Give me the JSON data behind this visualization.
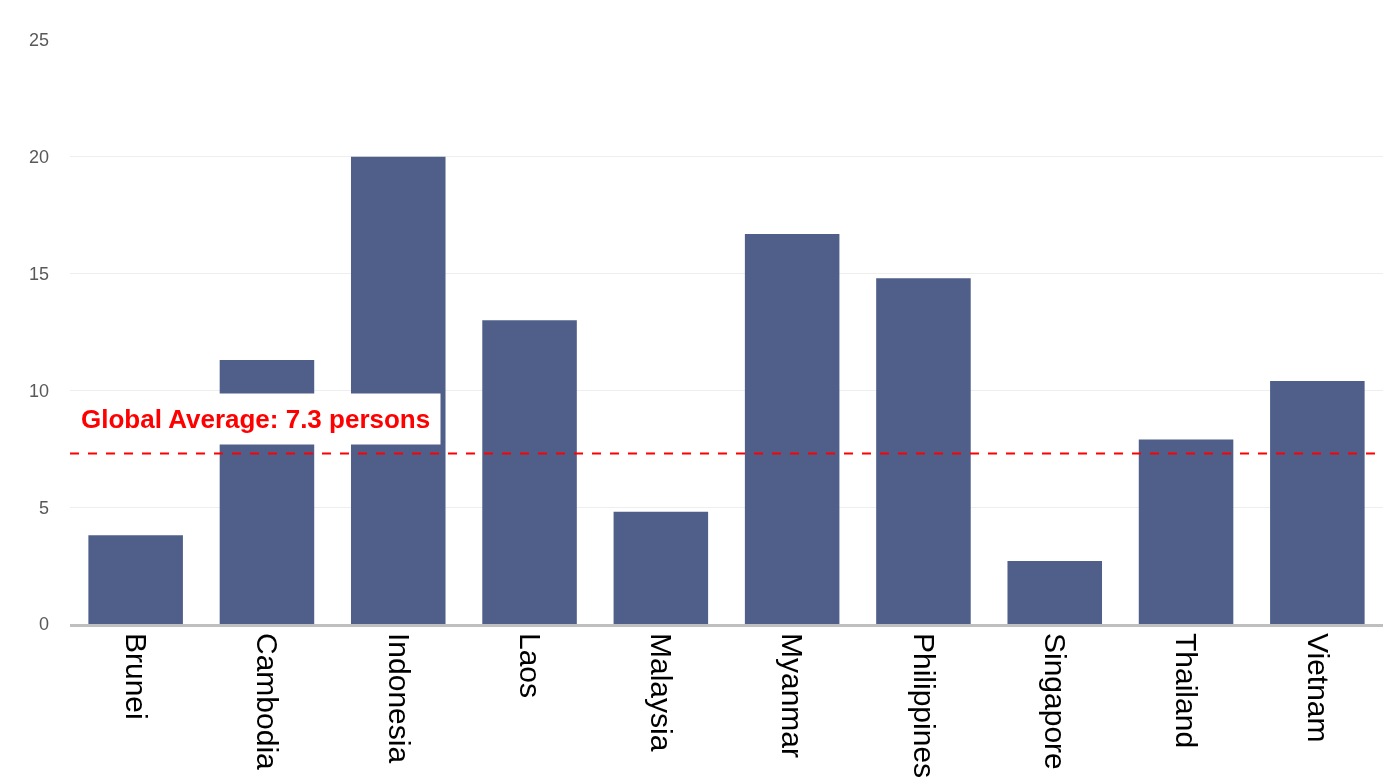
{
  "chart_data": {
    "type": "bar",
    "categories": [
      "Brunei",
      "Cambodia",
      "Indonesia",
      "Laos",
      "Malaysia",
      "Myanmar",
      "Philippines",
      "Singapore",
      "Thailand",
      "Vietnam"
    ],
    "values": [
      3.8,
      11.3,
      20,
      13,
      4.8,
      16.7,
      14.8,
      2.7,
      7.9,
      10.4
    ],
    "color": "#4f5f8a",
    "ylim": [
      0,
      25
    ],
    "yticks": [
      0,
      5,
      10,
      15,
      20,
      25
    ],
    "grid": "y",
    "ref_lines": [
      {
        "axis": "y",
        "value": 7.3,
        "label": "Global Average: 7.3 persons",
        "color": "#ff0000",
        "line_style": "dashed"
      }
    ]
  }
}
